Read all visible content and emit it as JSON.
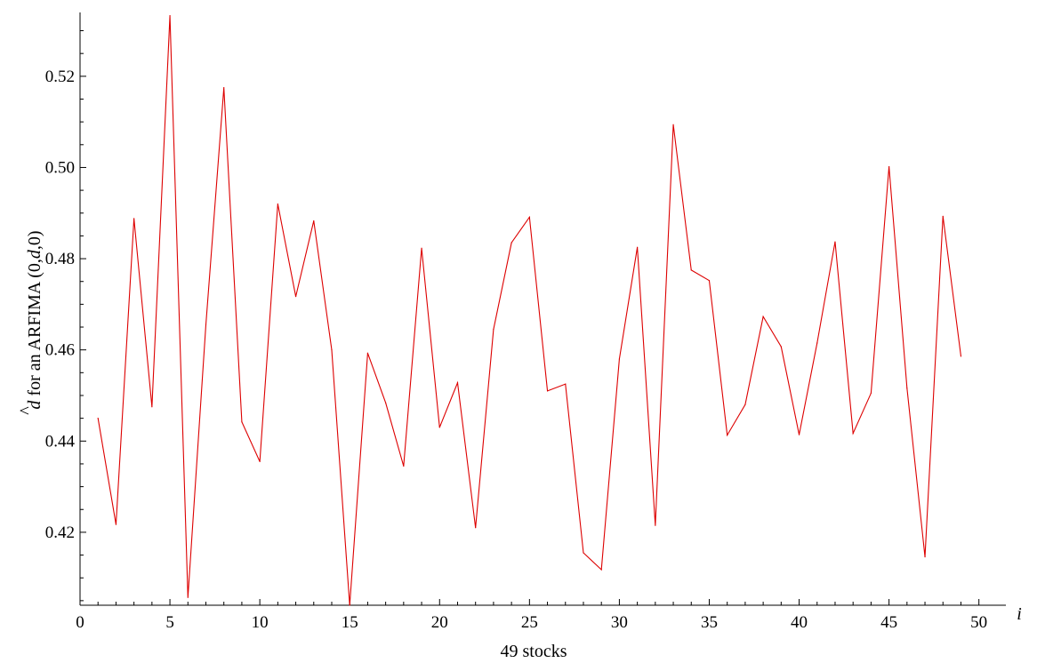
{
  "chart_data": {
    "type": "line",
    "title": "",
    "xlabel_lines": [
      "i",
      "49 stocks"
    ],
    "ylabel": {
      "prefix": "d",
      "prefix_mark": "^",
      "text": " for an ARFIMA (0,",
      "italic": "d",
      "suffix": ",0)"
    },
    "xlim": [
      0,
      51.5
    ],
    "ylim": [
      0.404,
      0.534
    ],
    "x_ticks": [
      0,
      5,
      10,
      15,
      20,
      25,
      30,
      35,
      40,
      45,
      50
    ],
    "y_ticks": [
      0.42,
      0.44,
      0.46,
      0.48,
      0.5,
      0.52
    ],
    "y_tick_labels": [
      "0.42",
      "0.44",
      "0.46",
      "0.48",
      "0.50",
      "0.52"
    ],
    "grid": false,
    "line_color": "#dd0000",
    "series": [
      {
        "x": [
          1,
          2,
          3,
          4,
          5,
          6,
          7,
          8,
          9,
          10,
          11,
          12,
          13,
          14,
          15,
          16,
          17,
          18,
          19,
          20,
          21,
          22,
          23,
          24,
          25,
          26,
          27,
          28,
          29,
          30,
          31,
          32,
          33,
          34,
          35,
          36,
          37,
          38,
          39,
          40,
          41,
          42,
          43,
          44,
          45,
          46,
          47,
          48,
          49
        ],
        "values": [
          0.445,
          0.4217,
          0.4888,
          0.4475,
          0.5333,
          0.4057,
          0.4655,
          0.5175,
          0.4442,
          0.4355,
          0.492,
          0.4717,
          0.4883,
          0.46,
          0.404,
          0.4593,
          0.4484,
          0.4345,
          0.4823,
          0.443,
          0.4528,
          0.421,
          0.4645,
          0.4835,
          0.4891,
          0.451,
          0.4525,
          0.4155,
          0.4118,
          0.458,
          0.4825,
          0.4215,
          0.5094,
          0.4775,
          0.4752,
          0.4413,
          0.448,
          0.4673,
          0.4607,
          0.4414,
          0.4615,
          0.4837,
          0.4417,
          0.4505,
          0.5002,
          0.4516,
          0.4146,
          0.4893,
          0.4586
        ]
      }
    ]
  }
}
